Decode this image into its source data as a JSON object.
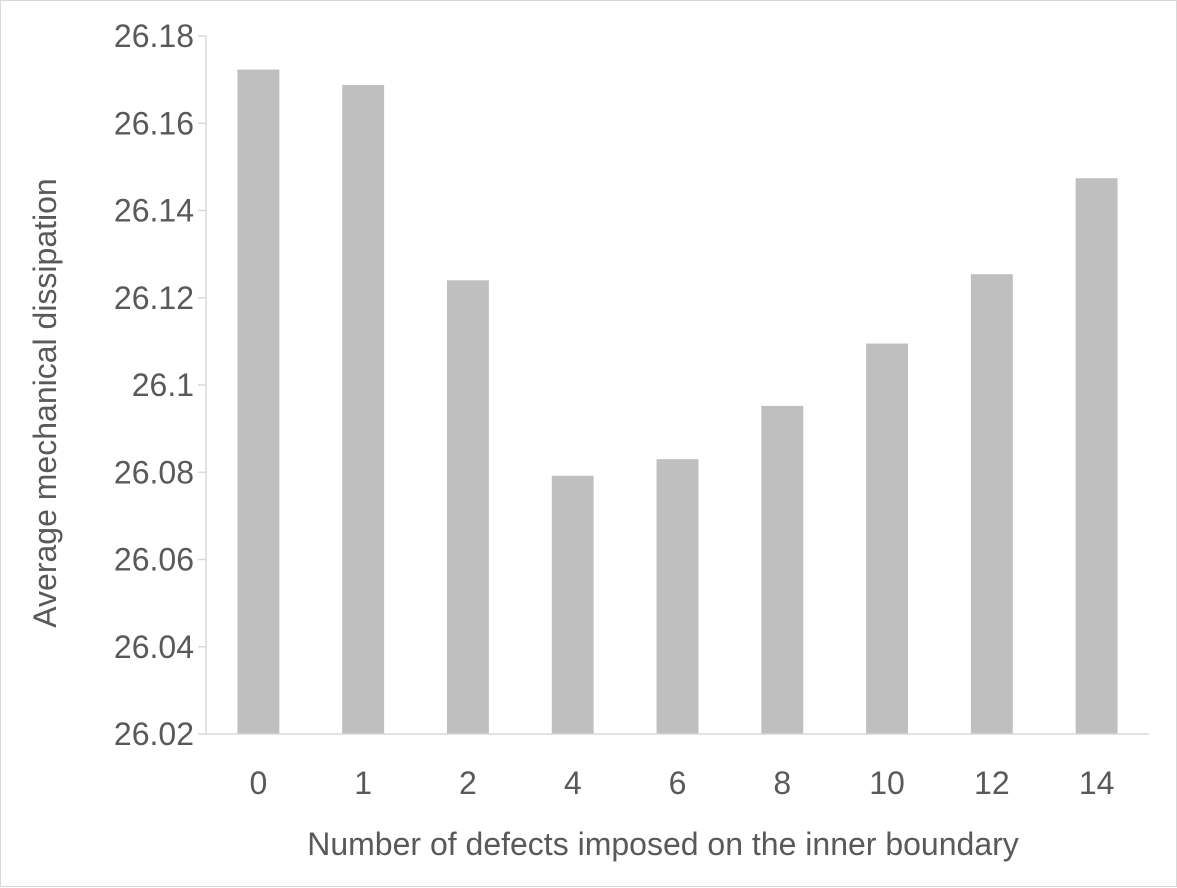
{
  "chart_data": {
    "type": "bar",
    "title": "",
    "xlabel": "Number of defects imposed on the inner boundary",
    "ylabel": "Average mechanical dissipation",
    "categories": [
      "0",
      "1",
      "2",
      "4",
      "6",
      "8",
      "10",
      "12",
      "14"
    ],
    "values": [
      26.1723,
      26.1688,
      26.124,
      26.0792,
      26.083,
      26.0952,
      26.1095,
      26.1254,
      26.1474
    ],
    "ylim": [
      26.02,
      26.18
    ],
    "yticks": [
      "26.02",
      "26.04",
      "26.06",
      "26.08",
      "26.1",
      "26.12",
      "26.14",
      "26.16",
      "26.18"
    ],
    "grid": false,
    "legend": "none",
    "bar_color": "#bfbfbf",
    "axis_color": "#d9d9d9",
    "text_color": "#595959"
  }
}
